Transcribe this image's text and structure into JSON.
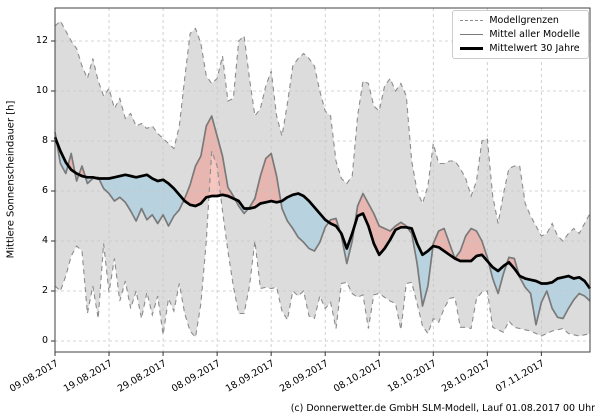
{
  "figure": {
    "footer": "(c) Donnerwetter.de GmbH SLM-Modell, Lauf 01.08.2017 00 Uhr"
  },
  "chart_data": {
    "type": "line",
    "title": "",
    "xlabel": "",
    "ylabel": "Mittlere Sonnenscheindauer [h]",
    "ylim": [
      -0.45,
      13.3
    ],
    "yticks": [
      0,
      2,
      4,
      6,
      8,
      10,
      12
    ],
    "ytick_labels": [
      "0",
      "2",
      "4",
      "6",
      "8",
      "10",
      "12"
    ],
    "x_tick_days": [
      0,
      10,
      20,
      30,
      40,
      50,
      60,
      70,
      80,
      90
    ],
    "x_tick_labels": [
      "09.08.2017",
      "19.08.2017",
      "29.08.2017",
      "08.09.2017",
      "18.09.2017",
      "28.09.2017",
      "08.10.2017",
      "18.10.2017",
      "28.10.2017",
      "07.11.2017"
    ],
    "x_range_days": [
      0,
      99
    ],
    "grid": true,
    "legend": {
      "position": "upper right",
      "entries": [
        {
          "label": "Modellgrenzen",
          "style": "dashed-gray"
        },
        {
          "label": "Mittel aller Modelle",
          "style": "solid-gray"
        },
        {
          "label": "Mittelwert 30 Jahre",
          "style": "thick-black"
        }
      ]
    },
    "colors": {
      "band": "#dcdcdc",
      "boundary": "#8c8c8c",
      "model_mean": "#7a7a7a",
      "mean_30y": "#000000",
      "fill_above": "#f0978c",
      "fill_below": "#9bcce2",
      "fill_alpha": 0.55,
      "grid": "#c6c6c6",
      "frame": "#404040"
    },
    "series": [
      {
        "name": "Modellgrenze oben",
        "values": [
          12.6,
          12.8,
          12.4,
          12.0,
          11.7,
          11.0,
          10.5,
          11.3,
          10.4,
          9.8,
          10.1,
          9.3,
          9.7,
          8.9,
          9.1,
          8.6,
          8.7,
          8.5,
          8.6,
          8.3,
          8.1,
          7.9,
          7.7,
          8.6,
          10.5,
          12.3,
          12.5,
          11.9,
          10.6,
          10.3,
          10.5,
          11.4,
          9.6,
          9.7,
          12.0,
          12.2,
          10.5,
          9.0,
          9.3,
          10.2,
          10.8,
          9.0,
          8.2,
          9.5,
          11.0,
          11.3,
          11.5,
          11.3,
          11.0,
          10.0,
          9.2,
          9.0,
          7.2,
          6.5,
          6.3,
          6.6,
          9.0,
          10.4,
          10.3,
          9.4,
          9.2,
          10.2,
          10.5,
          10.0,
          10.3,
          9.8,
          7.2,
          6.0,
          5.5,
          6.2,
          7.9,
          7.1,
          7.1,
          7.2,
          7.2,
          6.9,
          6.5,
          5.8,
          6.4,
          8.0,
          8.1,
          5.8,
          4.7,
          5.9,
          6.9,
          7.0,
          7.0,
          5.5,
          5.0,
          4.6,
          4.2,
          4.3,
          4.7,
          4.2,
          4.0,
          4.3,
          4.5,
          4.3,
          4.7,
          5.1
        ]
      },
      {
        "name": "Modellgrenze unten",
        "values": [
          2.2,
          2.0,
          2.6,
          3.4,
          3.8,
          3.6,
          1.1,
          2.2,
          0.9,
          3.9,
          1.95,
          3.3,
          1.6,
          2.4,
          1.3,
          2.0,
          0.9,
          1.95,
          1.05,
          1.8,
          0.25,
          1.7,
          1.2,
          2.3,
          1.1,
          0.4,
          0.15,
          1.5,
          4.0,
          7.6,
          7.0,
          5.2,
          3.6,
          2.2,
          1.1,
          1.1,
          2.2,
          4.0,
          2.1,
          2.15,
          2.1,
          2.15,
          1.2,
          0.85,
          2.0,
          1.8,
          2.0,
          1.0,
          0.9,
          1.8,
          1.3,
          1.55,
          0.5,
          2.3,
          2.35,
          1.9,
          1.75,
          1.85,
          0.5,
          1.85,
          1.9,
          1.75,
          1.6,
          1.5,
          0.45,
          2.3,
          2.35,
          1.5,
          0.6,
          0.3,
          0.9,
          0.75,
          1.3,
          1.7,
          1.75,
          0.55,
          0.55,
          0.5,
          1.7,
          1.95,
          2.0,
          0.55,
          0.45,
          0.35,
          0.8,
          0.55,
          0.5,
          0.45,
          0.4,
          0.3,
          0.2,
          0.3,
          0.4,
          0.45,
          0.5,
          0.3,
          0.25,
          0.2,
          0.25,
          0.3
        ]
      },
      {
        "name": "Mittel aller Modelle",
        "values": [
          8.35,
          7.1,
          6.7,
          7.5,
          6.4,
          7.0,
          6.3,
          6.5,
          6.55,
          6.1,
          5.9,
          5.6,
          5.75,
          5.55,
          5.2,
          4.8,
          5.3,
          4.85,
          5.05,
          4.7,
          5.05,
          4.6,
          5.0,
          5.25,
          5.7,
          6.25,
          7.0,
          7.4,
          8.6,
          9.0,
          8.2,
          7.4,
          6.15,
          5.8,
          5.4,
          5.1,
          5.35,
          5.7,
          6.6,
          7.3,
          7.5,
          6.6,
          5.3,
          4.8,
          4.5,
          4.15,
          3.95,
          3.7,
          3.6,
          3.95,
          4.55,
          4.85,
          4.9,
          4.2,
          3.1,
          4.0,
          5.4,
          5.9,
          5.5,
          5.1,
          4.6,
          4.5,
          4.4,
          4.6,
          4.75,
          4.6,
          4.3,
          3.1,
          1.4,
          2.2,
          3.9,
          4.4,
          4.5,
          3.9,
          3.3,
          3.6,
          4.2,
          4.5,
          4.4,
          4.0,
          3.35,
          2.5,
          1.9,
          2.7,
          3.35,
          3.3,
          2.55,
          2.15,
          1.9,
          0.65,
          1.55,
          2.0,
          1.3,
          0.95,
          0.9,
          1.3,
          1.65,
          1.9,
          1.8,
          1.6
        ]
      },
      {
        "name": "Mittelwert 30 Jahre",
        "values": [
          8.15,
          7.6,
          7.15,
          6.85,
          6.7,
          6.6,
          6.55,
          6.55,
          6.5,
          6.5,
          6.5,
          6.55,
          6.6,
          6.65,
          6.6,
          6.55,
          6.6,
          6.65,
          6.5,
          6.4,
          6.45,
          6.3,
          6.1,
          5.85,
          5.6,
          5.45,
          5.4,
          5.5,
          5.75,
          5.8,
          5.8,
          5.85,
          5.8,
          5.7,
          5.6,
          5.3,
          5.3,
          5.35,
          5.5,
          5.55,
          5.6,
          5.55,
          5.6,
          5.75,
          5.85,
          5.9,
          5.8,
          5.6,
          5.35,
          5.1,
          4.85,
          4.7,
          4.6,
          4.3,
          3.7,
          4.3,
          5.0,
          5.1,
          4.6,
          3.9,
          3.45,
          3.7,
          4.05,
          4.45,
          4.55,
          4.55,
          4.5,
          3.9,
          3.45,
          3.6,
          3.8,
          3.75,
          3.6,
          3.45,
          3.3,
          3.2,
          3.2,
          3.2,
          3.4,
          3.45,
          3.2,
          2.95,
          2.8,
          3.0,
          3.15,
          2.9,
          2.6,
          2.5,
          2.45,
          2.4,
          2.3,
          2.3,
          2.35,
          2.5,
          2.55,
          2.6,
          2.5,
          2.55,
          2.4,
          2.1
        ]
      }
    ]
  }
}
